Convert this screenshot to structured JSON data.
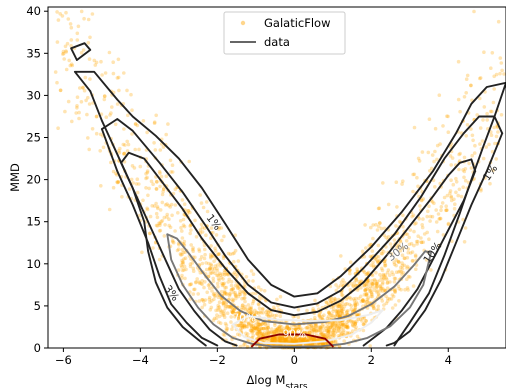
{
  "chart_data": {
    "type": "scatter",
    "xlabel": "Δlog M",
    "xlabel_sub": "stars",
    "ylabel": "MMD",
    "xlim": [
      -6.4,
      5.5
    ],
    "ylim": [
      0,
      40.5
    ],
    "xticks": [
      -6,
      -4,
      -2,
      0,
      2,
      4
    ],
    "xtick_labels": [
      "−6",
      "−4",
      "−2",
      "0",
      "2",
      "4"
    ],
    "yticks": [
      0,
      5,
      10,
      15,
      20,
      25,
      30,
      35,
      40
    ],
    "ytick_labels": [
      "0",
      "5",
      "10",
      "15",
      "20",
      "25",
      "30",
      "35",
      "40"
    ],
    "legend": {
      "placement": "top-center",
      "entries": [
        {
          "label": "GalaticFlow",
          "marker": "point",
          "color": "#ffa500"
        },
        {
          "label": "data",
          "marker": "line",
          "color": "#666666"
        }
      ]
    },
    "scatter_series": {
      "name": "GalaticFlow",
      "color": "#ffa500",
      "alpha": 0.3,
      "ridge": [
        [
          -6.3,
          39
        ],
        [
          -5.8,
          35
        ],
        [
          -5.4,
          31
        ],
        [
          -5,
          27.5
        ],
        [
          -4.5,
          24
        ],
        [
          -4,
          20.5
        ],
        [
          -3.5,
          17
        ],
        [
          -3,
          13.5
        ],
        [
          -2.5,
          10
        ],
        [
          -2,
          7
        ],
        [
          -1.5,
          4.5
        ],
        [
          -1,
          2.5
        ],
        [
          -0.5,
          1.2
        ],
        [
          0,
          0.8
        ],
        [
          0.5,
          1.2
        ],
        [
          1,
          2.5
        ],
        [
          1.5,
          4.5
        ],
        [
          2,
          7
        ],
        [
          2.5,
          9.5
        ],
        [
          3,
          12.5
        ],
        [
          3.5,
          15.5
        ],
        [
          4,
          18.5
        ],
        [
          4.5,
          22
        ],
        [
          5,
          26
        ],
        [
          5.4,
          30
        ],
        [
          5.5,
          35
        ]
      ]
    },
    "contours": [
      {
        "level_label": "1%",
        "color": "#222222",
        "paths": [
          [
            [
              -5.3,
              30.5
            ],
            [
              -5.7,
              32.8
            ],
            [
              -5.2,
              32.8
            ],
            [
              -4.6,
              29.5
            ],
            [
              -4.2,
              27.5
            ],
            [
              -3.6,
              25.2
            ],
            [
              -3,
              22.5
            ],
            [
              -2.4,
              19
            ],
            [
              -1.8,
              14.8
            ],
            [
              -1.2,
              10.5
            ],
            [
              -0.6,
              7.5
            ],
            [
              0,
              6.1
            ],
            [
              0.6,
              6.5
            ],
            [
              1.2,
              8.5
            ],
            [
              2,
              12
            ],
            [
              2.8,
              16.2
            ],
            [
              3.6,
              21
            ],
            [
              4.2,
              25.5
            ],
            [
              4.6,
              29
            ],
            [
              5,
              31
            ],
            [
              5.5,
              31.5
            ]
          ],
          [
            [
              -5.3,
              30.5
            ],
            [
              -5,
              27
            ],
            [
              -4.6,
              23
            ],
            [
              -4.2,
              19
            ],
            [
              -3.9,
              15
            ],
            [
              -3.8,
              11.5
            ],
            [
              -3.6,
              7.8
            ],
            [
              -3.3,
              4.8
            ],
            [
              -2.9,
              2.5
            ],
            [
              -2.5,
              1
            ],
            [
              -2.3,
              0.3
            ]
          ],
          [
            [
              5.5,
              31.5
            ],
            [
              5.2,
              27.5
            ],
            [
              4.9,
              23.8
            ],
            [
              4.6,
              20
            ],
            [
              4.3,
              16
            ],
            [
              3.9,
              11
            ],
            [
              3.5,
              6.5
            ],
            [
              3,
              3
            ],
            [
              2.7,
              1
            ],
            [
              2.6,
              0.3
            ]
          ],
          [
            [
              -5.65,
              34.2
            ],
            [
              -5.3,
              35.4
            ],
            [
              -5.45,
              36.2
            ],
            [
              -5.8,
              35.6
            ],
            [
              -5.65,
              34.2
            ]
          ]
        ]
      },
      {
        "level_label": "3%",
        "color": "#222222",
        "paths": [
          [
            [
              -5,
              26
            ],
            [
              -4.6,
              27.2
            ],
            [
              -4.2,
              25.8
            ],
            [
              -3.5,
              22
            ],
            [
              -2.9,
              18.5
            ],
            [
              -2.3,
              14.5
            ],
            [
              -1.8,
              11
            ],
            [
              -1.2,
              7.5
            ],
            [
              -0.6,
              5.4
            ],
            [
              0,
              4.8
            ],
            [
              0.6,
              5.3
            ],
            [
              1.2,
              6.8
            ],
            [
              1.8,
              9.5
            ],
            [
              2.6,
              13.5
            ],
            [
              3.3,
              18
            ],
            [
              3.9,
              22.5
            ],
            [
              4.4,
              25.5
            ],
            [
              4.8,
              27.5
            ],
            [
              5.2,
              27.5
            ],
            [
              5.4,
              25.5
            ]
          ],
          [
            [
              -5,
              26
            ],
            [
              -4.6,
              21
            ],
            [
              -4.2,
              17
            ],
            [
              -3.8,
              12.5
            ],
            [
              -3.5,
              8.5
            ],
            [
              -3.2,
              5.2
            ],
            [
              -2.8,
              3
            ],
            [
              -2.4,
              1.2
            ],
            [
              -2,
              0.3
            ]
          ],
          [
            [
              5.4,
              25.5
            ],
            [
              5,
              21
            ],
            [
              4.6,
              17
            ],
            [
              4.2,
              12.5
            ],
            [
              3.8,
              8
            ],
            [
              3.4,
              4.5
            ],
            [
              3,
              2
            ],
            [
              2.6,
              0.6
            ],
            [
              2.4,
              0.3
            ]
          ]
        ]
      },
      {
        "level_label": "10%",
        "color": "#222222",
        "paths": [
          [
            [
              -4.5,
              22
            ],
            [
              -4.3,
              23.2
            ],
            [
              -3.9,
              22.5
            ],
            [
              -3.4,
              19.5
            ],
            [
              -2.9,
              16.5
            ],
            [
              -2.4,
              13
            ],
            [
              -1.8,
              9.5
            ],
            [
              -1.2,
              6.5
            ],
            [
              -0.6,
              4.5
            ],
            [
              0,
              3.9
            ],
            [
              0.6,
              4.3
            ],
            [
              1.2,
              5.6
            ],
            [
              1.8,
              7.8
            ],
            [
              2.4,
              11
            ],
            [
              3,
              14.5
            ],
            [
              3.6,
              18
            ],
            [
              4,
              20.5
            ],
            [
              4.3,
              22
            ],
            [
              4.6,
              22.4
            ],
            [
              4.7,
              21
            ]
          ],
          [
            [
              -4.5,
              22
            ],
            [
              -4.1,
              18
            ],
            [
              -3.7,
              14
            ],
            [
              -3.3,
              10
            ],
            [
              -3,
              7
            ],
            [
              -2.6,
              4.4
            ],
            [
              -2.2,
              2.2
            ],
            [
              -1.8,
              0.8
            ],
            [
              -1.5,
              0.3
            ]
          ],
          [
            [
              4.7,
              21
            ],
            [
              4.4,
              17.5
            ],
            [
              4,
              14
            ],
            [
              3.6,
              10.5
            ],
            [
              3.2,
              7
            ],
            [
              2.8,
              4.5
            ],
            [
              2.4,
              2.4
            ],
            [
              2,
              1
            ],
            [
              1.8,
              0.3
            ]
          ]
        ]
      },
      {
        "level_label": "30%",
        "color": "#777777",
        "paths": [
          [
            [
              -3.3,
              13.5
            ],
            [
              -3.05,
              13
            ],
            [
              -2.7,
              11
            ],
            [
              -2.3,
              8.5
            ],
            [
              -1.9,
              6.2
            ],
            [
              -1.4,
              4.4
            ],
            [
              -0.8,
              3.2
            ],
            [
              0,
              2.8
            ],
            [
              0.8,
              3.1
            ],
            [
              1.4,
              3.8
            ],
            [
              2,
              5.2
            ],
            [
              2.6,
              7.3
            ],
            [
              3.1,
              9.8
            ],
            [
              3.4,
              11.5
            ],
            [
              3.55,
              11.3
            ]
          ],
          [
            [
              -3.3,
              13.5
            ],
            [
              -3.2,
              10.5
            ],
            [
              -2.9,
              7.5
            ],
            [
              -2.5,
              4.8
            ],
            [
              -2.1,
              2.8
            ],
            [
              -1.6,
              1.2
            ],
            [
              -1.1,
              0.5
            ],
            [
              -0.6,
              0.2
            ],
            [
              0,
              0.15
            ],
            [
              0.7,
              0.2
            ],
            [
              1.3,
              0.5
            ],
            [
              1.9,
              1.2
            ],
            [
              2.5,
              2.6
            ],
            [
              3,
              4.8
            ],
            [
              3.35,
              7.5
            ],
            [
              3.55,
              11.3
            ]
          ]
        ]
      },
      {
        "level_label": "70%",
        "color": "#eeeeee",
        "paths": [
          [
            [
              -1.6,
              2.8
            ],
            [
              -1.2,
              3.8
            ],
            [
              -0.5,
              3.4
            ],
            [
              0.4,
              3.2
            ],
            [
              1.2,
              3.3
            ],
            [
              1.9,
              3.9
            ],
            [
              2.3,
              4.5
            ],
            [
              2,
              3
            ],
            [
              1.5,
              1.6
            ],
            [
              0.8,
              0.8
            ],
            [
              0,
              0.5
            ],
            [
              -0.8,
              0.6
            ],
            [
              -1.3,
              1.3
            ],
            [
              -1.6,
              2.8
            ]
          ]
        ]
      },
      {
        "level_label": "90%",
        "color": "#8b0000",
        "paths": [
          [
            [
              -1.1,
              0.2
            ],
            [
              -0.9,
              1.1
            ],
            [
              -0.4,
              1.6
            ],
            [
              0.3,
              1.6
            ],
            [
              0.8,
              1.1
            ],
            [
              1.0,
              0.2
            ]
          ]
        ]
      }
    ],
    "contour_labels": [
      {
        "text": "1%",
        "x": -2.1,
        "y": 14.9,
        "rotate": 52,
        "color": "#222222"
      },
      {
        "text": "3%",
        "x": -3.2,
        "y": 6.5,
        "rotate": 52,
        "color": "#222222"
      },
      {
        "text": "10%",
        "x": 3.6,
        "y": 11.3,
        "rotate": -55,
        "color": "#222222"
      },
      {
        "text": "1%",
        "x": 5.1,
        "y": 20.8,
        "rotate": -55,
        "color": "#222222"
      },
      {
        "text": "30%",
        "x": 2.7,
        "y": 11.4,
        "rotate": -38,
        "color": "#777777"
      },
      {
        "text": "70%",
        "x": -1.3,
        "y": 3.5,
        "rotate": 0,
        "color": "#ffffff"
      },
      {
        "text": "90%",
        "x": 0,
        "y": 1.6,
        "rotate": 0,
        "color": "#ffffff"
      }
    ],
    "grid": false
  }
}
